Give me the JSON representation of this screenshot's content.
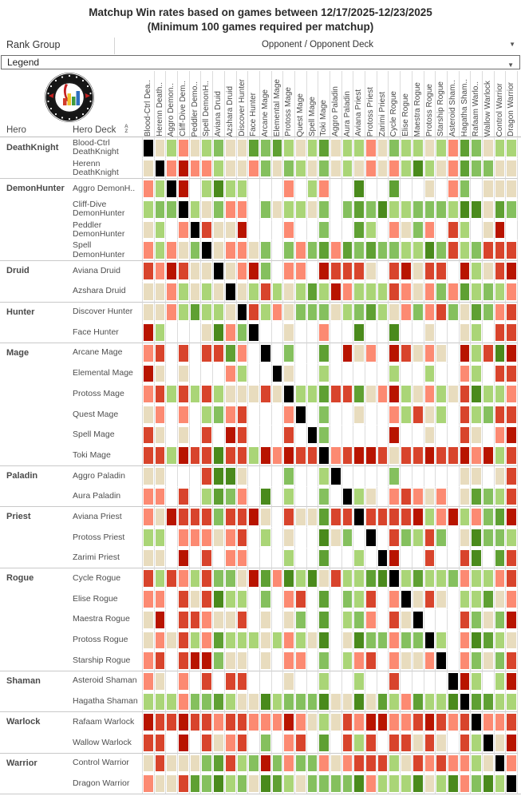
{
  "title": {
    "line1": "Matchup Win rates based on games between 12/17/2025-12/23/2025",
    "line2": "(Minimum 100 games required per matchup)"
  },
  "controls": {
    "rank_group_label": "Rank Group",
    "opponent_header": "Opponent / Opponent Deck",
    "opponent_dropdown_icon": "▼",
    "legend_value": "Legend",
    "legend_dropdown_icon": "▼"
  },
  "table_header": {
    "hero_col_label": "Hero",
    "deck_col_label": "Hero Deck",
    "sort_icon_top": "A",
    "sort_icon_bottom": "Z"
  },
  "chart_data": {
    "type": "heatmap",
    "title": "Matchup Win rates based on games between 12/17/2025-12/23/2025 (Minimum 100 games required per matchup)",
    "legend_position": "dropdown-collapsed",
    "x_axis_label": "Opponent / Opponent Deck",
    "y_axis_labels": [
      "Hero",
      "Hero Deck"
    ],
    "x_categories": [
      "Blood-Ctrl Dea..",
      "Herenn Death..",
      "Aggro Demon..",
      "Cliff-Dive Dem..",
      "Peddler Demo..",
      "Spell DemonH..",
      "Aviana Druid",
      "Azshara Druid",
      "Discover Hunter",
      "Face Hunter",
      "Arcane Mage",
      "Elemental Mage",
      "Protoss Mage",
      "Quest Mage",
      "Spell Mage",
      "Toki Mage",
      "Aggro Paladin",
      "Aura Paladin",
      "Aviana Priest",
      "Protoss Priest",
      "Zarimi Priest",
      "Cycle Rogue",
      "Elise Rogue",
      "Maestra Rogue",
      "Protoss Rogue",
      "Starship Rogue",
      "Asteroid Sham..",
      "Hagatha Sham..",
      "Rafaam Warlo..",
      "Wallow Warlock",
      "Control Warrior",
      "Dragon Warrior"
    ],
    "y_groups": [
      {
        "hero": "DeathKnight",
        "decks": [
          "Blood-Ctrl DeathKnight",
          "Herenn DeathKnight"
        ]
      },
      {
        "hero": "DemonHunter",
        "decks": [
          "Aggro DemonH..",
          "Cliff-Dive DemonHunter",
          "Peddler DemonHunter",
          "Spell DemonHunter"
        ]
      },
      {
        "hero": "Druid",
        "decks": [
          "Aviana Druid",
          "Azshara Druid"
        ]
      },
      {
        "hero": "Hunter",
        "decks": [
          "Discover Hunter",
          "Face Hunter"
        ]
      },
      {
        "hero": "Mage",
        "decks": [
          "Arcane Mage",
          "Elemental Mage",
          "Protoss Mage",
          "Quest Mage",
          "Spell Mage",
          "Toki Mage"
        ]
      },
      {
        "hero": "Paladin",
        "decks": [
          "Aggro Paladin",
          "Aura Paladin"
        ]
      },
      {
        "hero": "Priest",
        "decks": [
          "Aviana Priest",
          "Protoss Priest",
          "Zarimi Priest"
        ]
      },
      {
        "hero": "Rogue",
        "decks": [
          "Cycle Rogue",
          "Elise Rogue",
          "Maestra Rogue",
          "Protoss Rogue",
          "Starship Rogue"
        ]
      },
      {
        "hero": "Shaman",
        "decks": [
          "Asteroid Shaman",
          "Hagatha Shaman"
        ]
      },
      {
        "hero": "Warlock",
        "decks": [
          "Rafaam Warlock",
          "Wallow Warlock"
        ]
      },
      {
        "hero": "Warrior",
        "decks": [
          "Control Warrior",
          "Dragon Warrior"
        ]
      }
    ],
    "color_codes": {
      "K": "mirror matchup (black)",
      "W": "insufficient games (blank)",
      "D": "strongly unfavorable",
      "R": "unfavorable",
      "S": "slightly unfavorable",
      "T": "even (~50%)",
      "L": "slightly favorable",
      "M": "favorable",
      "G": "very favorable",
      "F": "strongly favorable"
    },
    "palette": {
      "K": "#000000",
      "W": "#ffffff",
      "T": "#e8dcbe",
      "L": "#aad577",
      "M": "#85c05e",
      "G": "#5fa033",
      "F": "#4a8a1c",
      "S": "#fc8a72",
      "R": "#d8442c",
      "D": "#b81400"
    },
    "cell_colors": [
      "KTLSTLMTTGMGLTLGTLLSTMLLTLSGMTLL",
      "TKSDSSLTTSMTMLTMTLTSTSLFLTSGMMTT",
      "SLKDWLFLLWWWSWLSWWFWWGWWTWSMWTTT",
      "LMMKLTMSSWMTLLTMWMGMFLLMMMLFFTGM",
      "TLWSKRTTDWWWSWWMWWGLWSTMSWRLWTDW",
      "SLSTMKTSSTMWMSMGSGMGMMLLFMRLMRRR",
      "RSDRTTKTSDMWSSWDRRRTWRDTRRWDLTRD",
      "TTSLTLTKTLRLTLGLDSLLLRSTSMSGLMLS",
      "TTSLGLLTKRLSTMMMTLMGLTSMSRMTGMSR",
      "DLWWWTFSMKWWTWWSWWFWWFWWTWWTLWRR",
      "SRWRWRRGSWKWMWWGWDTSWDRTSTWDLRFD",
      "DTWTWWWSLWWKTWWLWWWWWLWWLWWSLWRR",
      "SRLRLRLTTTRTKLLGRRGTSDLTSLTRFLLS",
      "TSWSWLMSRWWWSKWMWWTWWSLRTLWRLMRR",
      "RTWTWRWDRWWWRWKMWWWWWDWWTWWRTWSD",
      "RRLDRRFRRLDSDRRKSRDDRTRRDRRDSDLR",
      "TTWWWRFFTWWWMWWLKWWWWMWWWWWTTWTR",
      "SSWRWLGMSWFWLWWMWKLTWSRSTSWTGMLR",
      "STDRRRMRRDTWRTTGRRKRRRRDLSDLSMGD",
      "LLWSSSTSRWLWTWWFTMWKWRMLRMWTFMML",
      "TTWDWRWSSWWWLWWGWWLWKDWWRWWRFWGR",
      "RLRSLRMMTDGSFLFTRLLGFKLGLLMSLLSR",
      "SSWRTRFLLWMWSRWGWMLRWSKTRTWLLGTS",
      "TDWRRSTTRWTWTMWGWLMSWRTKWWWRMTMD",
      "TSTRLSGLLLTLSLTFWTFMMSMMKLWSFGLT",
      "SRWRDDMTTWTWSSWMWLSRWSTTSKWSMTMR",
      "STWSWRWRRWWWTWWLWWLWWRWWWWKDLWLD",
      "LLLSMMGLTTFLMMMFTTFTGLSGLLFKGGLL",
      "DRRDRRSRRSSSDSTLTRSDDSSRDRSRKSSR",
      "RRWDWRTSRWMWSRWGWRLRWRRTRTWRLKTD",
      "TRTTTMGRLMDMSMMSTSRRRLTRSRSSLTKS",
      "STTRGMFLMTFGLTMMMMFSLLLFTLFSMFLK"
    ]
  }
}
